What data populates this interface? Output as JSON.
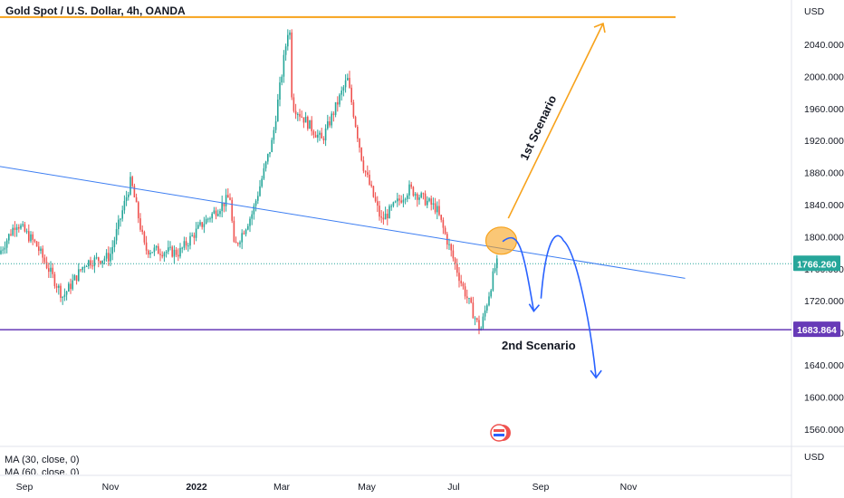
{
  "header": {
    "title": "Gold Spot / U.S. Dollar, 4h, OANDA"
  },
  "price_axis": {
    "currency_label": "USD",
    "bottom_label": "USD",
    "ticks": [
      "2040.000",
      "2000.000",
      "1960.000",
      "1920.000",
      "1880.000",
      "1840.000",
      "1800.000",
      "1760.000",
      "1720.000",
      "1680.000",
      "1640.000",
      "1600.000",
      "1560.000"
    ]
  },
  "time_axis": {
    "labels": [
      "Sep",
      "Nov",
      "2022",
      "Mar",
      "May",
      "Jul",
      "Sep",
      "Nov"
    ]
  },
  "indicators": [
    "MA (30, close, 0)",
    "MA (60, close, 0)"
  ],
  "badges": {
    "current_price": {
      "label": "1766.260",
      "color": "#26a69a"
    },
    "support_level": {
      "label": "1683.864",
      "color": "#673ab7"
    }
  },
  "annotations": {
    "scenario1": "1st Scenario",
    "scenario2": "2nd Scenario"
  },
  "colors": {
    "bull": "#26a69a",
    "bear": "#ef5350",
    "trendline": "#3d7ef2",
    "resistance": "#f7a21b",
    "support": "#673ab7",
    "arrow_blue": "#2962ff",
    "arrow_orange": "#f7a21b"
  },
  "chart_data": {
    "type": "candlestick",
    "title": "Gold Spot / U.S. Dollar, 4h, OANDA",
    "ylabel": "USD",
    "ylim": [
      1542,
      2082
    ],
    "x_ticks": [
      "Sep",
      "Nov",
      "2022",
      "Mar",
      "May",
      "Jul",
      "Sep",
      "Nov"
    ],
    "y_ticks": [
      2040,
      2000,
      1960,
      1920,
      1880,
      1840,
      1800,
      1760,
      1720,
      1680,
      1640,
      1600,
      1560
    ],
    "grid": false,
    "price_path": [
      [
        "2021-07-20",
        1806
      ],
      [
        "2021-08-09",
        1760
      ],
      [
        "2021-08-27",
        1818
      ],
      [
        "2021-09-10",
        1790
      ],
      [
        "2021-09-29",
        1725
      ],
      [
        "2021-10-15",
        1768
      ],
      [
        "2021-11-01",
        1775
      ],
      [
        "2021-11-16",
        1870
      ],
      [
        "2021-11-26",
        1784
      ],
      [
        "2021-12-20",
        1780
      ],
      [
        "2022-01-05",
        1815
      ],
      [
        "2022-01-25",
        1850
      ],
      [
        "2022-01-28",
        1785
      ],
      [
        "2022-02-10",
        1830
      ],
      [
        "2022-02-24",
        1920
      ],
      [
        "2022-03-08",
        2070
      ],
      [
        "2022-03-10",
        1965
      ],
      [
        "2022-03-31",
        1920
      ],
      [
        "2022-04-18",
        1997
      ],
      [
        "2022-04-29",
        1890
      ],
      [
        "2022-05-12",
        1820
      ],
      [
        "2022-06-01",
        1860
      ],
      [
        "2022-06-20",
        1835
      ],
      [
        "2022-07-08",
        1740
      ],
      [
        "2022-07-21",
        1682
      ],
      [
        "2022-08-01",
        1766
      ]
    ],
    "levels": [
      {
        "name": "resistance",
        "y": 2074
      },
      {
        "name": "support",
        "y": 1683.864
      },
      {
        "name": "current price",
        "y": 1766.26
      }
    ],
    "trendline": {
      "from": [
        "2021-07-20",
        1895
      ],
      "to": [
        "2022-12-12",
        1748
      ]
    },
    "scenario_paths": [
      {
        "label": "1st Scenario",
        "from": [
          "2022-08-09",
          1823
        ],
        "to": [
          "2022-10-15",
          2066
        ]
      },
      {
        "label": "2nd Scenario",
        "points": [
          [
            "2022-08-05",
            1794
          ],
          [
            "2022-08-27",
            1707
          ],
          [
            "2022-09-17",
            1795
          ],
          [
            "2022-10-10",
            1624
          ]
        ]
      }
    ]
  }
}
